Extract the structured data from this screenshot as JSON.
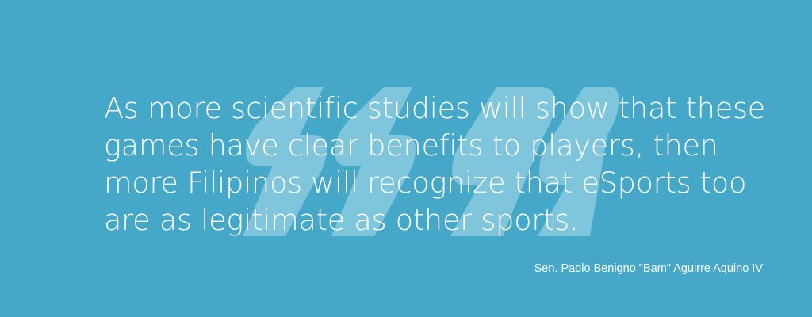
{
  "theme": {
    "background": "#45a8c8",
    "text": "#ffffff",
    "quote_mark": "#7fc5dc"
  },
  "decor": {
    "icon": "double-quote-icon"
  },
  "quote": {
    "lines": [
      "As more scientific studies will show that these",
      "games have clear benefits to players, then",
      "more Filipinos will recognize that eSports too",
      "are as legitimate as other sports."
    ]
  },
  "attribution": {
    "name": "Sen. Paolo Benigno \"Bam\" Aguirre Aquino IV"
  }
}
